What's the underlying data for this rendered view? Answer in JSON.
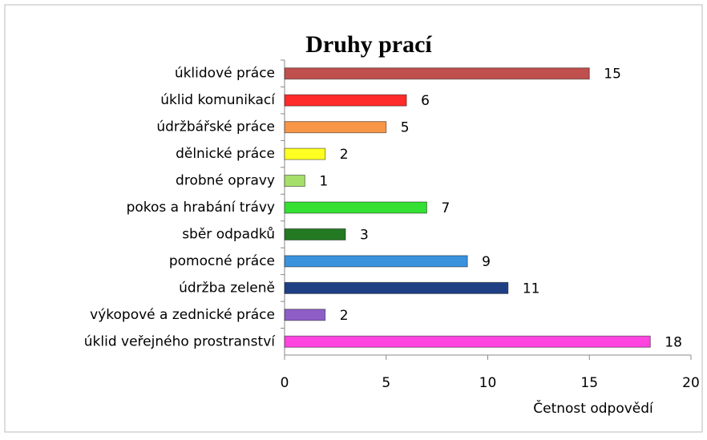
{
  "chart_data": {
    "type": "bar",
    "orientation": "horizontal",
    "title": "Druhy prací",
    "xlabel": "Četnost odpovědí",
    "categories": [
      "úklidové práce",
      "úklid komunikací",
      "údržbářské práce",
      "dělnické práce",
      "drobné opravy",
      "pokos a hrabání trávy",
      "sběr odpadků",
      "pomocné práce",
      "údržba zeleně",
      "výkopové a zednické práce",
      "úklid veřejného prostranství"
    ],
    "values": [
      15,
      6,
      5,
      2,
      1,
      7,
      3,
      9,
      11,
      2,
      18
    ],
    "colors": [
      "#c0504d",
      "#ff2a2a",
      "#f79646",
      "#ffff22",
      "#a6e06a",
      "#33e033",
      "#237a23",
      "#3a92dc",
      "#1f3f85",
      "#8e5ec6",
      "#ff44e0"
    ],
    "xlim": [
      0,
      20
    ],
    "xticks": [
      0,
      5,
      10,
      15,
      20
    ],
    "grid": false
  }
}
